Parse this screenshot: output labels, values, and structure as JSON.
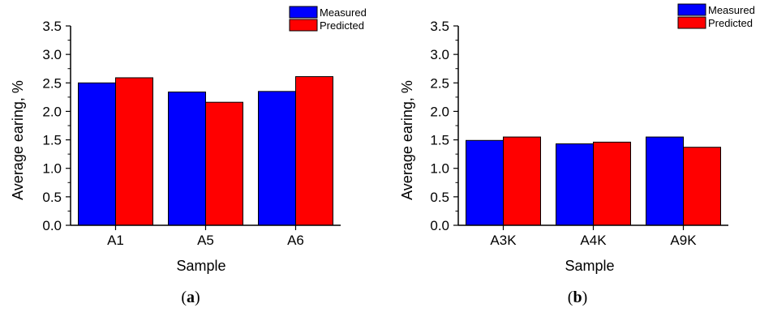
{
  "chart_data": [
    {
      "type": "bar",
      "panel_label_open": "(",
      "panel_label": "a",
      "panel_label_close": ")",
      "categories": [
        "A1",
        "A5",
        "A6"
      ],
      "series": [
        {
          "name": "Measured",
          "color": "#0000ff",
          "values": [
            2.5,
            2.34,
            2.35
          ]
        },
        {
          "name": "Predicted",
          "color": "#ff0000",
          "values": [
            2.59,
            2.16,
            2.61
          ]
        }
      ],
      "xlabel": "Sample",
      "ylabel": "Average earing, %",
      "ylim": [
        0,
        3.5
      ],
      "yticks": [
        "0.0",
        "0.5",
        "1.0",
        "1.5",
        "2.0",
        "2.5",
        "3.0",
        "3.5"
      ],
      "grid": false,
      "legend_position": "top-right"
    },
    {
      "type": "bar",
      "panel_label_open": "(",
      "panel_label": "b",
      "panel_label_close": ")",
      "categories": [
        "A3K",
        "A4K",
        "A9K"
      ],
      "series": [
        {
          "name": "Measured",
          "color": "#0000ff",
          "values": [
            1.49,
            1.43,
            1.55
          ]
        },
        {
          "name": "Predicted",
          "color": "#ff0000",
          "values": [
            1.55,
            1.46,
            1.37
          ]
        }
      ],
      "xlabel": "Sample",
      "ylabel": "Average earing, %",
      "ylim": [
        0,
        3.5
      ],
      "yticks": [
        "0.0",
        "0.5",
        "1.0",
        "1.5",
        "2.0",
        "2.5",
        "3.0",
        "3.5"
      ],
      "grid": false,
      "legend_position": "top-right"
    }
  ]
}
